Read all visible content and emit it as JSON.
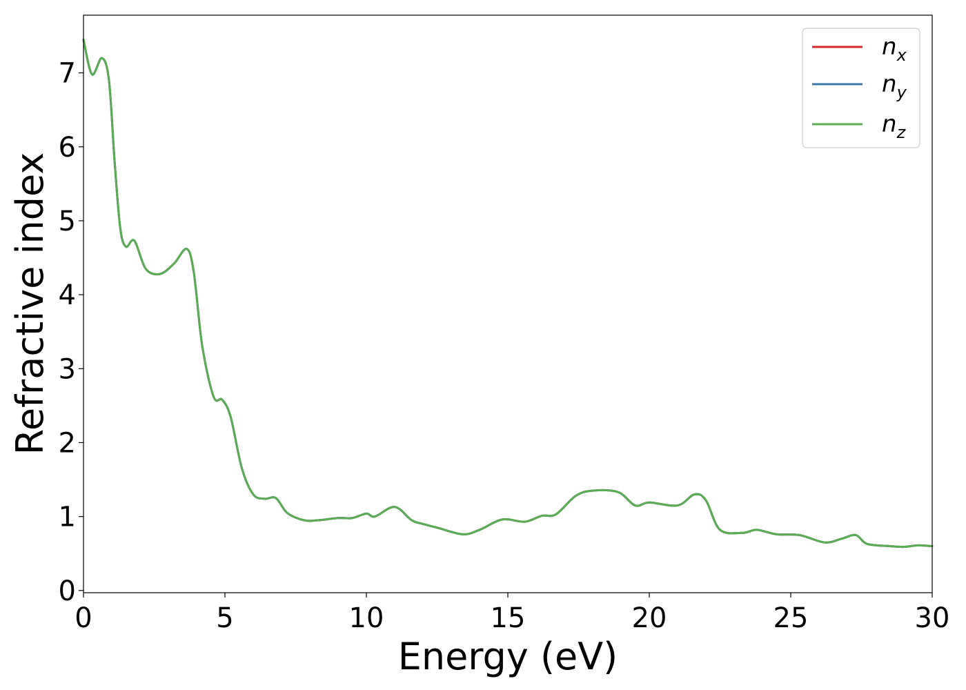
{
  "chart_data": {
    "type": "line",
    "xlabel": "Energy (eV)",
    "ylabel": "Refractive index",
    "xlim": [
      0,
      30
    ],
    "ylim": [
      -0.03,
      7.78
    ],
    "xticks": [
      0,
      5,
      10,
      15,
      20,
      25,
      30
    ],
    "yticks": [
      0,
      1,
      2,
      3,
      4,
      5,
      6,
      7
    ],
    "grid": false,
    "legend_position": "top-right",
    "x": [
      0,
      0.3,
      0.65,
      0.9,
      1.1,
      1.3,
      1.5,
      1.8,
      2.2,
      2.7,
      3.2,
      3.65,
      3.9,
      4.2,
      4.6,
      4.9,
      5.2,
      5.6,
      6.0,
      6.4,
      6.8,
      7.2,
      7.8,
      8.3,
      9.0,
      9.5,
      10.0,
      10.3,
      11.0,
      11.6,
      12.0,
      12.5,
      13.4,
      14.0,
      14.8,
      15.6,
      16.2,
      16.7,
      17.4,
      18.0,
      18.9,
      19.5,
      20.0,
      21.0,
      21.6,
      22.0,
      22.5,
      23.3,
      23.8,
      24.5,
      25.3,
      26.2,
      26.8,
      27.3,
      27.7,
      28.5,
      29.0,
      29.5,
      30.0
    ],
    "series": [
      {
        "name": "x",
        "color": "#d62728",
        "values": [
          7.45,
          6.98,
          7.2,
          6.9,
          5.8,
          4.9,
          4.65,
          4.73,
          4.35,
          4.28,
          4.42,
          4.62,
          4.3,
          3.3,
          2.62,
          2.58,
          2.35,
          1.65,
          1.3,
          1.24,
          1.25,
          1.05,
          0.95,
          0.95,
          0.98,
          0.98,
          1.04,
          1.0,
          1.13,
          0.95,
          0.9,
          0.85,
          0.76,
          0.82,
          0.96,
          0.93,
          1.01,
          1.03,
          1.28,
          1.35,
          1.33,
          1.15,
          1.19,
          1.15,
          1.3,
          1.22,
          0.82,
          0.78,
          0.82,
          0.76,
          0.75,
          0.65,
          0.7,
          0.75,
          0.63,
          0.6,
          0.59,
          0.61,
          0.6
        ]
      },
      {
        "name": "y",
        "color": "#3a78a8",
        "values": [
          7.45,
          6.98,
          7.2,
          6.9,
          5.8,
          4.9,
          4.65,
          4.73,
          4.35,
          4.28,
          4.42,
          4.62,
          4.3,
          3.3,
          2.62,
          2.58,
          2.35,
          1.65,
          1.3,
          1.24,
          1.25,
          1.05,
          0.95,
          0.95,
          0.98,
          0.98,
          1.04,
          1.0,
          1.13,
          0.95,
          0.9,
          0.85,
          0.76,
          0.82,
          0.96,
          0.93,
          1.01,
          1.03,
          1.28,
          1.35,
          1.33,
          1.15,
          1.19,
          1.15,
          1.3,
          1.22,
          0.82,
          0.78,
          0.82,
          0.76,
          0.75,
          0.65,
          0.7,
          0.75,
          0.63,
          0.6,
          0.59,
          0.61,
          0.6
        ]
      },
      {
        "name": "z",
        "color": "#5aad54",
        "values": [
          7.45,
          6.98,
          7.2,
          6.9,
          5.8,
          4.9,
          4.65,
          4.73,
          4.35,
          4.28,
          4.42,
          4.62,
          4.3,
          3.3,
          2.62,
          2.58,
          2.35,
          1.65,
          1.3,
          1.24,
          1.25,
          1.05,
          0.95,
          0.95,
          0.98,
          0.98,
          1.04,
          1.0,
          1.13,
          0.95,
          0.9,
          0.85,
          0.76,
          0.82,
          0.96,
          0.93,
          1.01,
          1.03,
          1.28,
          1.35,
          1.33,
          1.15,
          1.19,
          1.15,
          1.3,
          1.22,
          0.82,
          0.78,
          0.82,
          0.76,
          0.75,
          0.65,
          0.7,
          0.75,
          0.63,
          0.6,
          0.59,
          0.61,
          0.6
        ]
      }
    ],
    "legend": [
      {
        "symbol": "n",
        "subscript": "x"
      },
      {
        "symbol": "n",
        "subscript": "y"
      },
      {
        "symbol": "n",
        "subscript": "z"
      }
    ]
  }
}
